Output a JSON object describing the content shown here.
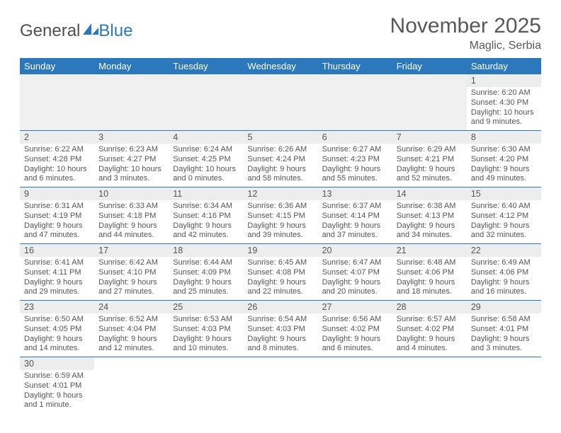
{
  "logo": {
    "part1": "General",
    "part2": "Blue"
  },
  "title": "November 2025",
  "subtitle": "Maglic, Serbia",
  "colors": {
    "header_bg": "#2c78bd",
    "header_text": "#ffffff",
    "rule": "#2c78bd",
    "daynum_bg": "#eceeee",
    "text": "#555555"
  },
  "dayNames": [
    "Sunday",
    "Monday",
    "Tuesday",
    "Wednesday",
    "Thursday",
    "Friday",
    "Saturday"
  ],
  "leadingBlanks": 6,
  "days": [
    {
      "n": 1,
      "sr": "6:20 AM",
      "ss": "4:30 PM",
      "dl": "10 hours and 9 minutes."
    },
    {
      "n": 2,
      "sr": "6:22 AM",
      "ss": "4:28 PM",
      "dl": "10 hours and 6 minutes."
    },
    {
      "n": 3,
      "sr": "6:23 AM",
      "ss": "4:27 PM",
      "dl": "10 hours and 3 minutes."
    },
    {
      "n": 4,
      "sr": "6:24 AM",
      "ss": "4:25 PM",
      "dl": "10 hours and 0 minutes."
    },
    {
      "n": 5,
      "sr": "6:26 AM",
      "ss": "4:24 PM",
      "dl": "9 hours and 58 minutes."
    },
    {
      "n": 6,
      "sr": "6:27 AM",
      "ss": "4:23 PM",
      "dl": "9 hours and 55 minutes."
    },
    {
      "n": 7,
      "sr": "6:29 AM",
      "ss": "4:21 PM",
      "dl": "9 hours and 52 minutes."
    },
    {
      "n": 8,
      "sr": "6:30 AM",
      "ss": "4:20 PM",
      "dl": "9 hours and 49 minutes."
    },
    {
      "n": 9,
      "sr": "6:31 AM",
      "ss": "4:19 PM",
      "dl": "9 hours and 47 minutes."
    },
    {
      "n": 10,
      "sr": "6:33 AM",
      "ss": "4:18 PM",
      "dl": "9 hours and 44 minutes."
    },
    {
      "n": 11,
      "sr": "6:34 AM",
      "ss": "4:16 PM",
      "dl": "9 hours and 42 minutes."
    },
    {
      "n": 12,
      "sr": "6:36 AM",
      "ss": "4:15 PM",
      "dl": "9 hours and 39 minutes."
    },
    {
      "n": 13,
      "sr": "6:37 AM",
      "ss": "4:14 PM",
      "dl": "9 hours and 37 minutes."
    },
    {
      "n": 14,
      "sr": "6:38 AM",
      "ss": "4:13 PM",
      "dl": "9 hours and 34 minutes."
    },
    {
      "n": 15,
      "sr": "6:40 AM",
      "ss": "4:12 PM",
      "dl": "9 hours and 32 minutes."
    },
    {
      "n": 16,
      "sr": "6:41 AM",
      "ss": "4:11 PM",
      "dl": "9 hours and 29 minutes."
    },
    {
      "n": 17,
      "sr": "6:42 AM",
      "ss": "4:10 PM",
      "dl": "9 hours and 27 minutes."
    },
    {
      "n": 18,
      "sr": "6:44 AM",
      "ss": "4:09 PM",
      "dl": "9 hours and 25 minutes."
    },
    {
      "n": 19,
      "sr": "6:45 AM",
      "ss": "4:08 PM",
      "dl": "9 hours and 22 minutes."
    },
    {
      "n": 20,
      "sr": "6:47 AM",
      "ss": "4:07 PM",
      "dl": "9 hours and 20 minutes."
    },
    {
      "n": 21,
      "sr": "6:48 AM",
      "ss": "4:06 PM",
      "dl": "9 hours and 18 minutes."
    },
    {
      "n": 22,
      "sr": "6:49 AM",
      "ss": "4:06 PM",
      "dl": "9 hours and 16 minutes."
    },
    {
      "n": 23,
      "sr": "6:50 AM",
      "ss": "4:05 PM",
      "dl": "9 hours and 14 minutes."
    },
    {
      "n": 24,
      "sr": "6:52 AM",
      "ss": "4:04 PM",
      "dl": "9 hours and 12 minutes."
    },
    {
      "n": 25,
      "sr": "6:53 AM",
      "ss": "4:03 PM",
      "dl": "9 hours and 10 minutes."
    },
    {
      "n": 26,
      "sr": "6:54 AM",
      "ss": "4:03 PM",
      "dl": "9 hours and 8 minutes."
    },
    {
      "n": 27,
      "sr": "6:56 AM",
      "ss": "4:02 PM",
      "dl": "9 hours and 6 minutes."
    },
    {
      "n": 28,
      "sr": "6:57 AM",
      "ss": "4:02 PM",
      "dl": "9 hours and 4 minutes."
    },
    {
      "n": 29,
      "sr": "6:58 AM",
      "ss": "4:01 PM",
      "dl": "9 hours and 3 minutes."
    },
    {
      "n": 30,
      "sr": "6:59 AM",
      "ss": "4:01 PM",
      "dl": "9 hours and 1 minute."
    }
  ],
  "labels": {
    "sunrise": "Sunrise: ",
    "sunset": "Sunset: ",
    "daylight": "Daylight: "
  }
}
